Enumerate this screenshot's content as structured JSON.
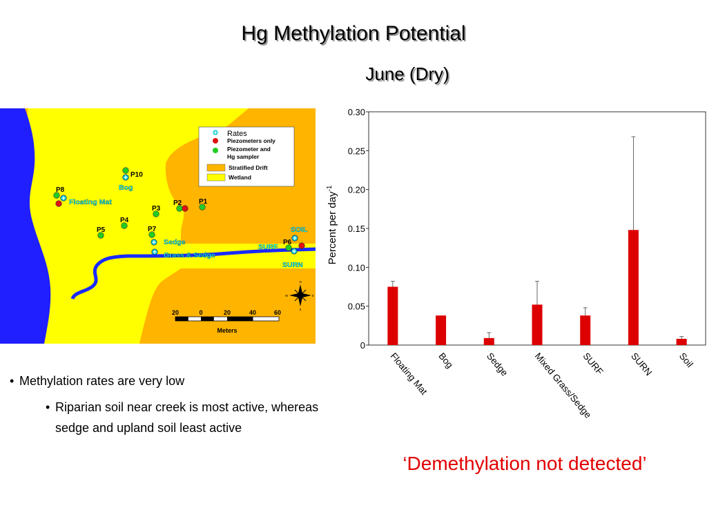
{
  "header": {
    "title": "Hg Methylation Potential",
    "subtitle": "June (Dry)"
  },
  "map": {
    "legend": {
      "rates": "Rates",
      "piezometers_only": "Piezometers only",
      "piezometer_sampler_line1": "Piezometer and",
      "piezometer_sampler_line2": "Hg sampler",
      "stratified_drift": "Stratified Drift",
      "wetland": "Wetland"
    },
    "points": [
      "P10",
      "P8",
      "P3",
      "P2",
      "P1",
      "P4",
      "P5",
      "P7",
      "P6"
    ],
    "sites": [
      "Bog",
      "Floating Mat",
      "Sedge",
      "Grass & Sedge",
      "SOIL",
      "SURF",
      "SURN"
    ],
    "scale": {
      "ticks": [
        "20",
        "0",
        "20",
        "40",
        "60"
      ],
      "unit": "Meters"
    },
    "compass": [
      "N",
      "E",
      "S",
      "W"
    ],
    "colors": {
      "water": "#1f1fff",
      "wetland": "#ffff00",
      "stratified_drift": "#ffb400",
      "stream": "#1a2bff",
      "site_label": "#00ffff",
      "point_green": "#22cc22",
      "point_red": "#e01010"
    }
  },
  "chart_data": {
    "type": "bar",
    "categories": [
      "Floating Mat",
      "Bog",
      "Sedge",
      "Mixed Grass/Sedge",
      "SURF",
      "SURN",
      "Soil"
    ],
    "values": [
      0.075,
      0.038,
      0.009,
      0.052,
      0.038,
      0.148,
      0.008
    ],
    "errors": [
      0.007,
      0.0,
      0.007,
      0.03,
      0.01,
      0.12,
      0.003
    ],
    "title": "",
    "xlabel": "",
    "ylabel": "Percent per day",
    "ylabel_superscript": "-1",
    "ylim": [
      0,
      0.3
    ],
    "yticks": [
      "0",
      "0.05",
      "0.10",
      "0.15",
      "0.20",
      "0.25",
      "0.30"
    ],
    "grid": false,
    "bar_color": "#dd0000"
  },
  "bullets": {
    "main": "Methylation rates are very low",
    "sub": "Riparian soil near creek is most active, whereas sedge and upland soil least active"
  },
  "note": "‘Demethylation not detected’"
}
